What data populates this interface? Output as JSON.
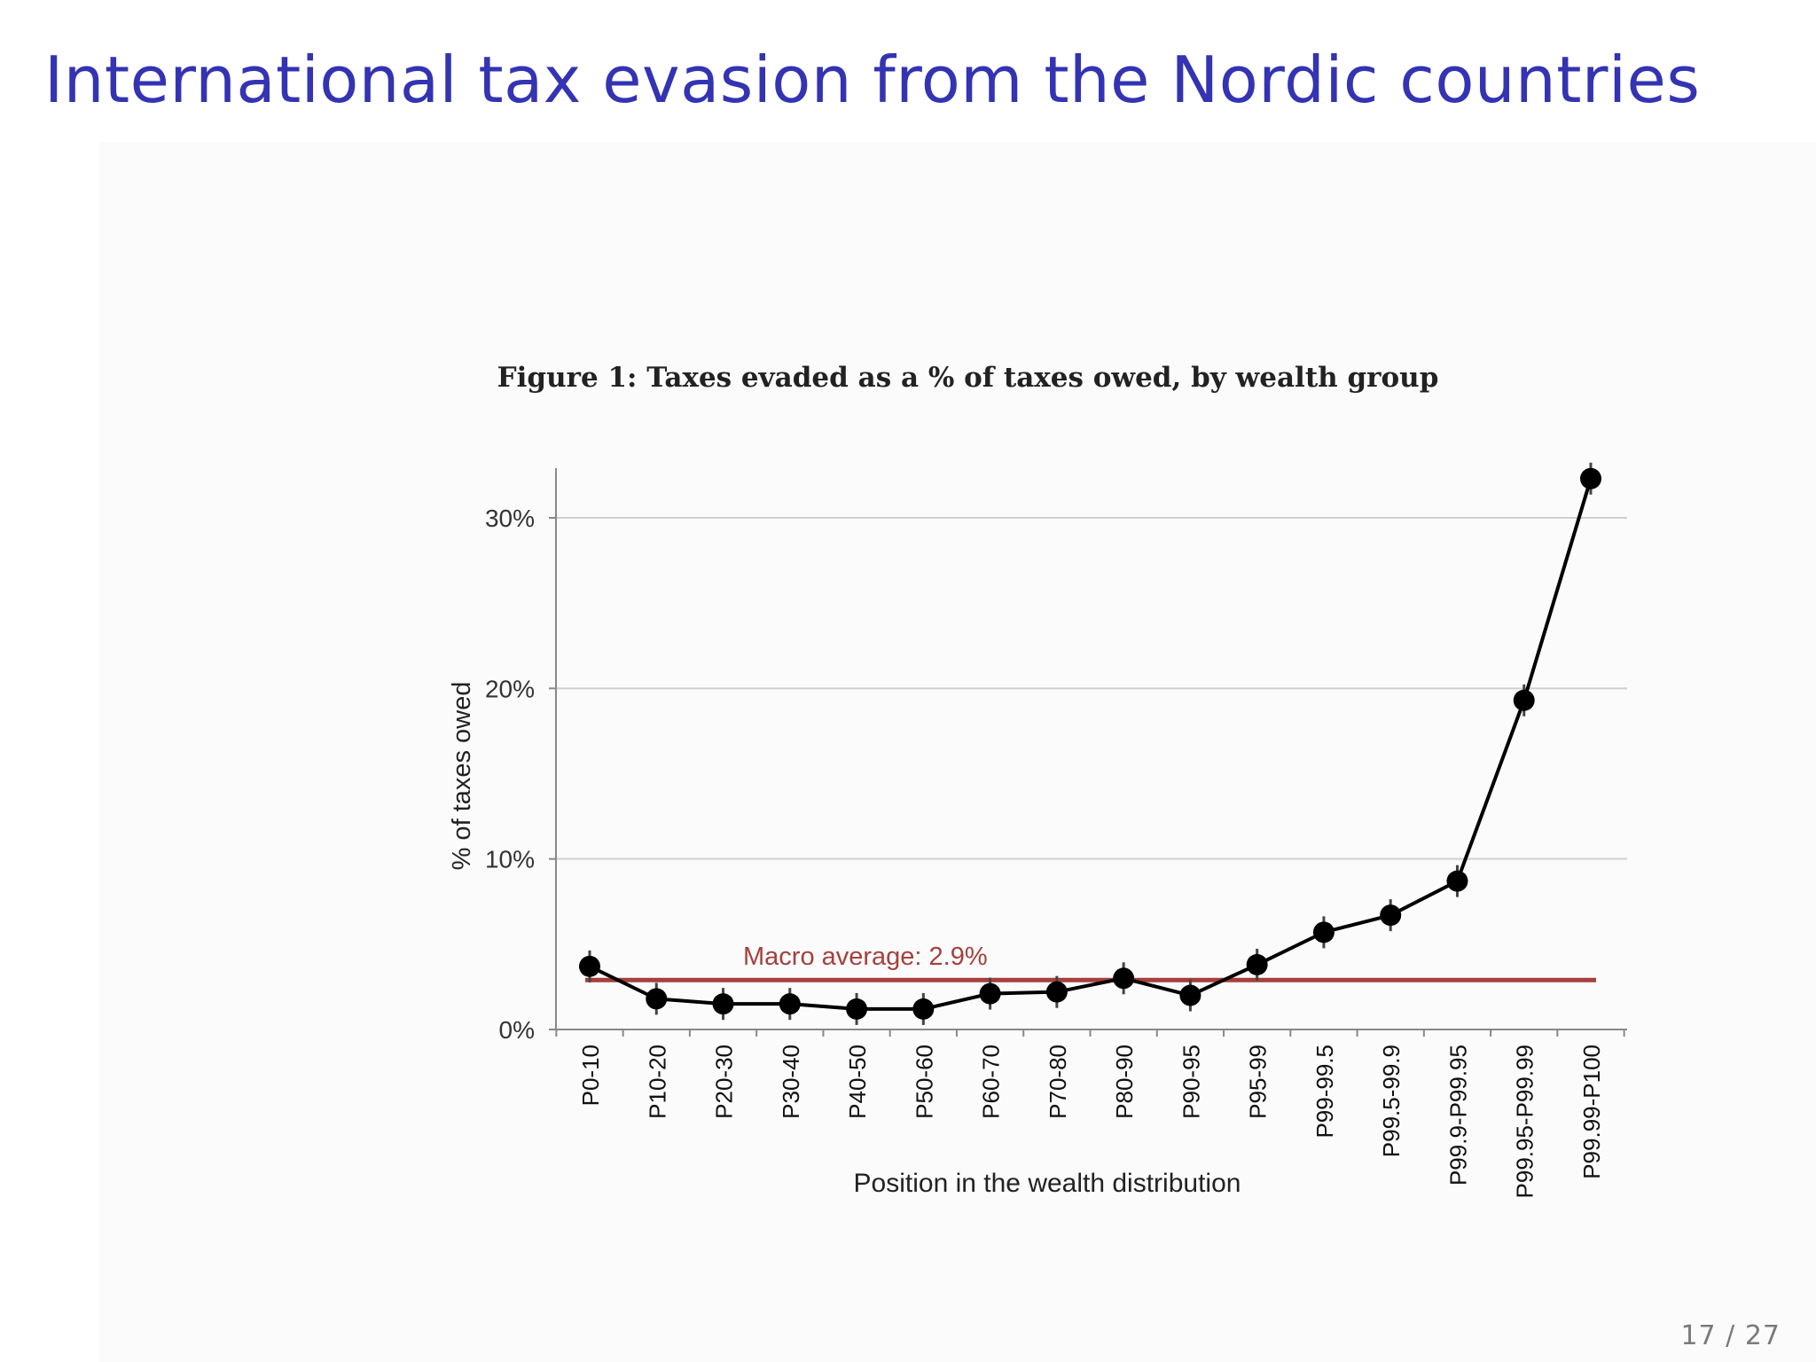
{
  "slide": {
    "title": "International tax evasion from the Nordic countries",
    "page_number": "17 / 27"
  },
  "chart_data": {
    "type": "line",
    "title": "Figure 1: Taxes evaded as a % of taxes owed, by wealth group",
    "xlabel": "Position in the wealth distribution",
    "ylabel": "% of taxes owed",
    "categories": [
      "P0-10",
      "P10-20",
      "P20-30",
      "P30-40",
      "P40-50",
      "P50-60",
      "P60-70",
      "P70-80",
      "P80-90",
      "P90-95",
      "P95-99",
      "P99-99.5",
      "P99.5-99.9",
      "P99.9-P99.95",
      "P99.95-P99.99",
      "P99.99-P100"
    ],
    "series": [
      {
        "values": [
          3.7,
          1.8,
          1.5,
          1.5,
          1.2,
          1.2,
          2.1,
          2.2,
          3.0,
          2.0,
          3.8,
          5.7,
          6.7,
          8.7,
          19.3,
          32.3
        ],
        "color": "#000000"
      }
    ],
    "reference_line": {
      "value": 2.9,
      "label": "Macro average: 2.9%",
      "color": "#a4413d"
    },
    "yticks": [
      0,
      10,
      20,
      30
    ],
    "ytick_labels": [
      "0%",
      "10%",
      "20%",
      "30%"
    ],
    "ylim": [
      0,
      33
    ],
    "grid": true,
    "legend": "none"
  }
}
